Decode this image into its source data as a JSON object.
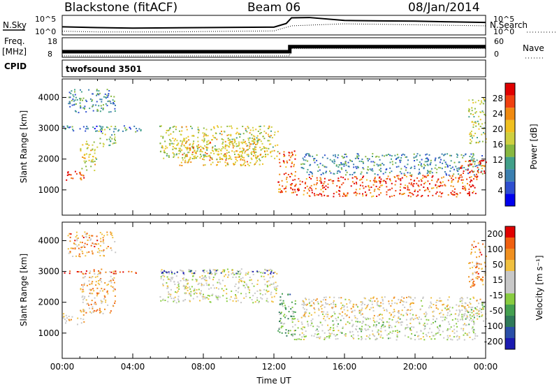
{
  "header": {
    "station": "Blackstone (fitACF)",
    "beam": "Beam 06",
    "date": "08/Jan/2014"
  },
  "side_labels": {
    "nsky": "N.Sky",
    "nsearch": "N.Search",
    "freq": "Freq.",
    "mhz": "[MHz]",
    "cpid": "CPID",
    "nave": "Nave",
    "cpid_value": "twofsound 3501"
  },
  "chart_data": [
    {
      "type": "line",
      "panel": "noise",
      "series": [
        {
          "name": "N.Sky",
          "x": [
            0,
            2,
            4,
            6,
            8,
            10,
            12,
            12.7,
            13,
            14,
            16,
            18,
            20,
            22,
            24
          ],
          "values": [
            100,
            60,
            40,
            50,
            60,
            70,
            80,
            1000,
            50000,
            60000,
            8000,
            6000,
            5000,
            3000,
            2000
          ]
        },
        {
          "name": "N.Search",
          "x": [
            0,
            2,
            4,
            6,
            8,
            10,
            12,
            13,
            16,
            20,
            24
          ],
          "values": [
            5,
            3,
            3,
            3,
            4,
            5,
            6,
            200,
            800,
            400,
            200
          ]
        }
      ],
      "ylim": [
        1,
        100000
      ],
      "left_ticks": [
        "10^5",
        "10^0"
      ],
      "right_ticks": [
        "10^5",
        "10^0"
      ]
    },
    {
      "type": "line",
      "panel": "frequency",
      "series": [
        {
          "name": "Freq.",
          "x": [
            0,
            12.9,
            12.9,
            24
          ],
          "values": [
            10.5,
            10.5,
            13.5,
            13.5
          ]
        },
        {
          "name": "Nave",
          "x": [
            0,
            12.9,
            12.9,
            24
          ],
          "values": [
            0,
            0,
            26,
            26
          ]
        }
      ],
      "left_ticks": [
        "18",
        "8"
      ],
      "right_ticks": [
        "60",
        "0"
      ]
    },
    {
      "type": "heatmap",
      "panel": "power",
      "xlim": [
        0,
        24
      ],
      "ylim": [
        180,
        4600
      ],
      "ylabel": "Slant Range [km]",
      "yticks": [
        1000,
        2000,
        3000,
        4000
      ],
      "colorbar": {
        "label": "Power [dB]",
        "ticks": [
          4,
          8,
          12,
          16,
          20,
          24,
          28
        ],
        "colors": [
          "#0000ee",
          "#2f4fd0",
          "#3b7fb0",
          "#42a08a",
          "#88b840",
          "#cfd040",
          "#f0c020",
          "#f08a10",
          "#f04010",
          "#e00000"
        ]
      },
      "regions": [
        {
          "t0": 0,
          "t1": 1.2,
          "r0": 1300,
          "r1": 1650,
          "level": 0.85
        },
        {
          "t0": 1.0,
          "t1": 2.0,
          "r0": 1650,
          "r1": 2600,
          "level": 0.55
        },
        {
          "t0": 2.0,
          "t1": 3.0,
          "r0": 2400,
          "r1": 3100,
          "level": 0.45
        },
        {
          "t0": 0,
          "t1": 4.5,
          "r0": 2900,
          "r1": 3100,
          "level": 0.25
        },
        {
          "t0": 5.5,
          "t1": 12.2,
          "r0": 2000,
          "r1": 3100,
          "level": 0.55
        },
        {
          "t0": 6.5,
          "t1": 11.5,
          "r0": 1800,
          "r1": 2600,
          "level": 0.65
        },
        {
          "t0": 12.2,
          "t1": 13.2,
          "r0": 900,
          "r1": 2300,
          "level": 0.8
        },
        {
          "t0": 13.0,
          "t1": 23.5,
          "r0": 800,
          "r1": 1500,
          "level": 0.85
        },
        {
          "t0": 13.5,
          "t1": 23.8,
          "r0": 1500,
          "r1": 2200,
          "level": 0.3
        },
        {
          "t0": 22.5,
          "t1": 24,
          "r0": 1400,
          "r1": 2000,
          "level": 0.85
        },
        {
          "t0": 23,
          "t1": 24,
          "r0": 2500,
          "r1": 4000,
          "level": 0.5
        },
        {
          "t0": 0.3,
          "t1": 3.0,
          "r0": 3500,
          "r1": 4300,
          "level": 0.3
        }
      ]
    },
    {
      "type": "heatmap",
      "panel": "velocity",
      "xlim": [
        0,
        24
      ],
      "ylim": [
        180,
        4600
      ],
      "ylabel": "Slant Range [km]",
      "xlabel": "Time UT",
      "yticks": [
        1000,
        2000,
        3000,
        4000
      ],
      "xticks": [
        "00:00",
        "04:00",
        "08:00",
        "12:00",
        "16:00",
        "20:00",
        "00:00"
      ],
      "colorbar": {
        "label": "Velocity [m s⁻¹]",
        "ticks": [
          200,
          100,
          50,
          15,
          -15,
          -50,
          -100,
          -200
        ],
        "colors": [
          "#1a1ab0",
          "#2a4fa8",
          "#2f7a5a",
          "#44a050",
          "#88cc40",
          "#c8c8c8",
          "#c8c8c8",
          "#f0c040",
          "#f09020",
          "#f06010",
          "#e00000"
        ]
      },
      "regions": [
        {
          "t0": 0,
          "t1": 1.2,
          "r0": 1300,
          "r1": 1650,
          "level": 0.62
        },
        {
          "t0": 1.0,
          "t1": 3.0,
          "r0": 1650,
          "r1": 3100,
          "level": 0.7
        },
        {
          "t0": 0,
          "t1": 4.5,
          "r0": 2950,
          "r1": 3050,
          "level": 0.9
        },
        {
          "t0": 5.5,
          "t1": 12.2,
          "r0": 2000,
          "r1": 3100,
          "level": 0.55
        },
        {
          "t0": 5.5,
          "t1": 12.0,
          "r0": 2950,
          "r1": 3050,
          "level": 0.05
        },
        {
          "t0": 12.2,
          "t1": 13.2,
          "r0": 900,
          "r1": 2300,
          "level": 0.35
        },
        {
          "t0": 13.0,
          "t1": 23.5,
          "r0": 800,
          "r1": 1500,
          "level": 0.5
        },
        {
          "t0": 13.5,
          "t1": 23.8,
          "r0": 1500,
          "r1": 2200,
          "level": 0.6
        },
        {
          "t0": 22.5,
          "t1": 24,
          "r0": 1400,
          "r1": 2000,
          "level": 0.5
        },
        {
          "t0": 23,
          "t1": 24,
          "r0": 2500,
          "r1": 4000,
          "level": 0.75
        },
        {
          "t0": 0.3,
          "t1": 3.0,
          "r0": 3500,
          "r1": 4300,
          "level": 0.75
        }
      ]
    }
  ]
}
